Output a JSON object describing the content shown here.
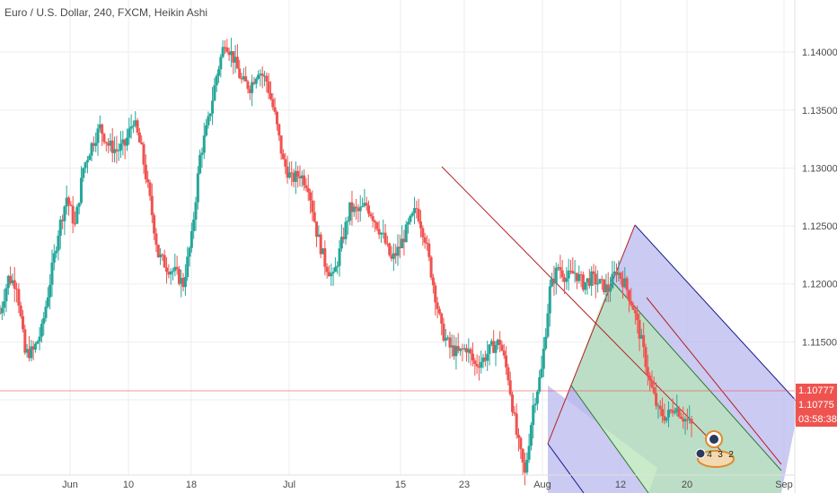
{
  "legend": {
    "text": "Euro / U.S. Dollar, 240, FXCM, Heikin Ashi"
  },
  "price_tags": {
    "last_price": "1.10777",
    "second_price": "1.10775",
    "countdown": "03:58:38"
  },
  "badge": {
    "counts": [
      "4",
      "3",
      "2"
    ]
  },
  "colors": {
    "up": "#26a69a",
    "down": "#ef5350",
    "grid": "#eeeeee",
    "pitchfork_line": "#b22222",
    "channel_green": "#b7e4b7",
    "channel_blue": "#b8b8ee",
    "channel_edge": "#1a1a8c",
    "current_price": "#ef5350"
  },
  "chart_data": {
    "type": "candlestick",
    "chart_style": "Heikin Ashi",
    "symbol": "Euro / U.S. Dollar",
    "interval": "240",
    "source": "FXCM",
    "ylim": [
      1.1035,
      1.1445
    ],
    "y_ticks": [
      "1.14000",
      "1.13500",
      "1.13000",
      "1.12500",
      "1.12000",
      "1.11500",
      "1.11000"
    ],
    "x_ticks": [
      "Jun",
      "10",
      "18",
      "Jul",
      "15",
      "23",
      "Aug",
      "12",
      "20",
      "Sep"
    ],
    "current_price": 1.10777,
    "series": [
      {
        "x": "May 24",
        "y": 1.1175
      },
      {
        "x": "May 26",
        "y": 1.1205
      },
      {
        "x": "May 28",
        "y": 1.12
      },
      {
        "x": "May 29",
        "y": 1.114
      },
      {
        "x": "May 30",
        "y": 1.1142
      },
      {
        "x": "May 31",
        "y": 1.116
      },
      {
        "x": "Jun 2",
        "y": 1.1202
      },
      {
        "x": "Jun 3",
        "y": 1.1245
      },
      {
        "x": "Jun 4",
        "y": 1.1275
      },
      {
        "x": "Jun 5",
        "y": 1.125
      },
      {
        "x": "Jun 7",
        "y": 1.13
      },
      {
        "x": "Jun 8",
        "y": 1.132
      },
      {
        "x": "Jun 9",
        "y": 1.1335
      },
      {
        "x": "Jun 10",
        "y": 1.132
      },
      {
        "x": "Jun 11",
        "y": 1.1315
      },
      {
        "x": "Jun 12",
        "y": 1.132
      },
      {
        "x": "Jun 13",
        "y": 1.1342
      },
      {
        "x": "Jun 14",
        "y": 1.1315
      },
      {
        "x": "Jun 15",
        "y": 1.1272
      },
      {
        "x": "Jun 16",
        "y": 1.1225
      },
      {
        "x": "Jun 17",
        "y": 1.1215
      },
      {
        "x": "Jun 18",
        "y": 1.121
      },
      {
        "x": "Jun 19",
        "y": 1.12
      },
      {
        "x": "Jun 20",
        "y": 1.124
      },
      {
        "x": "Jun 21",
        "y": 1.131
      },
      {
        "x": "Jun 22",
        "y": 1.134
      },
      {
        "x": "Jun 23",
        "y": 1.138
      },
      {
        "x": "Jun 24",
        "y": 1.141
      },
      {
        "x": "Jun 25",
        "y": 1.1395
      },
      {
        "x": "Jun 26",
        "y": 1.1375
      },
      {
        "x": "Jun 27",
        "y": 1.137
      },
      {
        "x": "Jun 28",
        "y": 1.1385
      },
      {
        "x": "Jun 29",
        "y": 1.1375
      },
      {
        "x": "Jul 1",
        "y": 1.1345
      },
      {
        "x": "Jul 2",
        "y": 1.1305
      },
      {
        "x": "Jul 3",
        "y": 1.129
      },
      {
        "x": "Jul 4",
        "y": 1.1295
      },
      {
        "x": "Jul 5",
        "y": 1.1285
      },
      {
        "x": "Jul 7",
        "y": 1.1245
      },
      {
        "x": "Jul 8",
        "y": 1.1218
      },
      {
        "x": "Jul 9",
        "y": 1.1205
      },
      {
        "x": "Jul 10",
        "y": 1.1235
      },
      {
        "x": "Jul 11",
        "y": 1.1265
      },
      {
        "x": "Jul 12",
        "y": 1.1262
      },
      {
        "x": "Jul 13",
        "y": 1.1268
      },
      {
        "x": "Jul 14",
        "y": 1.1255
      },
      {
        "x": "Jul 15",
        "y": 1.124
      },
      {
        "x": "Jul 16",
        "y": 1.122
      },
      {
        "x": "Jul 17",
        "y": 1.1232
      },
      {
        "x": "Jul 18",
        "y": 1.125
      },
      {
        "x": "Jul 19",
        "y": 1.1265
      },
      {
        "x": "Jul 20",
        "y": 1.124
      },
      {
        "x": "Jul 21",
        "y": 1.12
      },
      {
        "x": "Jul 22",
        "y": 1.116
      },
      {
        "x": "Jul 23",
        "y": 1.1145
      },
      {
        "x": "Jul 24",
        "y": 1.114
      },
      {
        "x": "Jul 25",
        "y": 1.1145
      },
      {
        "x": "Jul 26",
        "y": 1.113
      },
      {
        "x": "Jul 27",
        "y": 1.1135
      },
      {
        "x": "Jul 28",
        "y": 1.1145
      },
      {
        "x": "Jul 29",
        "y": 1.115
      },
      {
        "x": "Jul 30",
        "y": 1.112
      },
      {
        "x": "Jul 31",
        "y": 1.107
      },
      {
        "x": "Aug 1",
        "y": 1.1035
      },
      {
        "x": "Aug 2",
        "y": 1.1095
      },
      {
        "x": "Aug 3",
        "y": 1.1125
      },
      {
        "x": "Aug 4",
        "y": 1.1195
      },
      {
        "x": "Aug 5",
        "y": 1.1215
      },
      {
        "x": "Aug 6",
        "y": 1.1205
      },
      {
        "x": "Aug 7",
        "y": 1.121
      },
      {
        "x": "Aug 8",
        "y": 1.12
      },
      {
        "x": "Aug 9",
        "y": 1.1205
      },
      {
        "x": "Aug 10",
        "y": 1.12
      },
      {
        "x": "Aug 11",
        "y": 1.1195
      },
      {
        "x": "Aug 12",
        "y": 1.1212
      },
      {
        "x": "Aug 13",
        "y": 1.12
      },
      {
        "x": "Aug 14",
        "y": 1.118
      },
      {
        "x": "Aug 15",
        "y": 1.115
      },
      {
        "x": "Aug 16",
        "y": 1.1115
      },
      {
        "x": "Aug 17",
        "y": 1.109
      },
      {
        "x": "Aug 18",
        "y": 1.1085
      },
      {
        "x": "Aug 19",
        "y": 1.1095
      },
      {
        "x": "Aug 20",
        "y": 1.1085
      },
      {
        "x": "Aug 21",
        "y": 1.10777
      }
    ]
  }
}
